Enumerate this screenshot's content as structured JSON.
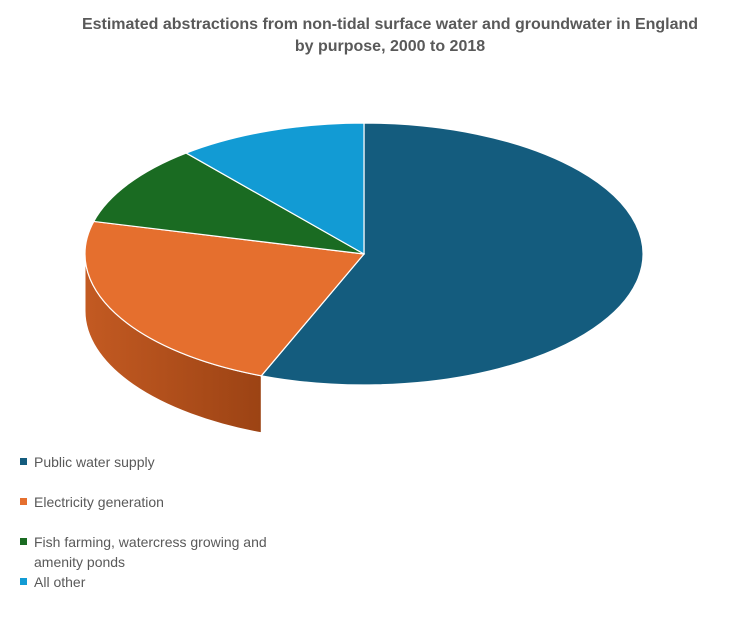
{
  "chart_data": {
    "type": "pie",
    "title_line1": "Estimated abstractions  from non-tidal surface water and groundwater in England",
    "title_line2": "by purpose, 2000 to 2018",
    "categories": [
      "Public water supply",
      "Electricity generation",
      "Fish farming, watercress growing and amenity ponds",
      "All other"
    ],
    "values": [
      56,
      23,
      10,
      11
    ],
    "colors": [
      "#145C7E",
      "#E56F2E",
      "#1A6B22",
      "#129BD4"
    ],
    "legend_position": "bottom-left",
    "style": "3d"
  }
}
